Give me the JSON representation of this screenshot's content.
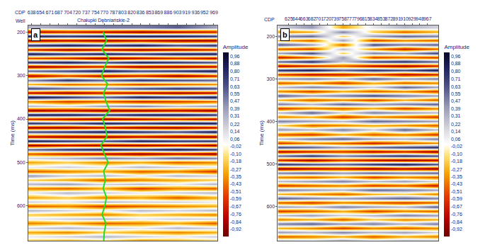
{
  "chart_data": [
    {
      "type": "heatmap",
      "panel": "a",
      "x_label": "CDP",
      "well_label": "Well",
      "well_name": "Chałupki Dębniańskie-2",
      "y_label": "Time (ms)",
      "colorbar_title": "Amplitude",
      "grid": false,
      "xlim": [
        632,
        975
      ],
      "xticks": [
        638,
        654,
        671,
        687,
        704,
        720,
        737,
        754,
        770,
        787,
        803,
        820,
        836,
        853,
        869,
        886,
        903,
        919,
        936,
        952,
        969
      ],
      "ylim": [
        680,
        185
      ],
      "yticks": [
        200,
        300,
        400,
        500,
        600
      ],
      "colorbar_range": [
        -1,
        1
      ],
      "colorbar_ticks": [
        {
          "value": 0.96,
          "label": "0,96"
        },
        {
          "value": 0.88,
          "label": "0,88"
        },
        {
          "value": 0.8,
          "label": "0,80"
        },
        {
          "value": 0.71,
          "label": "0,71"
        },
        {
          "value": 0.63,
          "label": "0,63"
        },
        {
          "value": 0.55,
          "label": "0,55"
        },
        {
          "value": 0.47,
          "label": "0,47"
        },
        {
          "value": 0.39,
          "label": "0,39"
        },
        {
          "value": 0.31,
          "label": "0,31"
        },
        {
          "value": 0.22,
          "label": "0,22"
        },
        {
          "value": 0.14,
          "label": "0,14"
        },
        {
          "value": 0.06,
          "label": "0,06"
        },
        {
          "value": -0.02,
          "label": "-0,02"
        },
        {
          "value": -0.1,
          "label": "-0,10"
        },
        {
          "value": -0.18,
          "label": "-0,18"
        },
        {
          "value": -0.27,
          "label": "-0,27"
        },
        {
          "value": -0.35,
          "label": "-0,35"
        },
        {
          "value": -0.43,
          "label": "-0,43"
        },
        {
          "value": -0.51,
          "label": "-0,51"
        },
        {
          "value": -0.59,
          "label": "-0,59"
        },
        {
          "value": -0.67,
          "label": "-0,67"
        },
        {
          "value": -0.76,
          "label": "-0,76"
        },
        {
          "value": -0.84,
          "label": "-0,84"
        },
        {
          "value": -0.92,
          "label": "-0,92"
        }
      ],
      "x": [
        638,
        704,
        770,
        836,
        903,
        969
      ],
      "y": [
        190,
        200,
        210,
        220,
        230,
        240,
        250,
        260,
        270,
        280,
        290,
        300,
        310,
        320,
        330,
        340,
        350,
        360,
        370,
        380,
        390,
        400,
        410,
        420,
        430,
        440,
        450,
        460,
        470,
        480,
        490,
        500,
        510,
        520,
        530,
        540,
        550,
        560,
        570,
        580,
        590,
        600,
        610,
        620,
        630,
        640,
        650,
        660,
        670,
        680
      ],
      "z": [
        [
          0.3,
          0.4,
          0.5,
          0.5,
          0.6,
          0.4
        ],
        [
          -0.8,
          -0.7,
          -0.8,
          -0.9,
          -0.8,
          -0.7
        ],
        [
          0.9,
          0.8,
          0.9,
          0.9,
          0.9,
          0.8
        ],
        [
          -0.9,
          -0.8,
          -0.9,
          -0.8,
          -0.9,
          -0.9
        ],
        [
          0.8,
          0.9,
          0.8,
          0.9,
          0.7,
          0.8
        ],
        [
          -0.7,
          -0.9,
          -0.8,
          -0.9,
          -0.8,
          -0.7
        ],
        [
          0.9,
          0.8,
          0.9,
          0.8,
          0.9,
          0.9
        ],
        [
          -0.6,
          -0.7,
          -0.9,
          -0.8,
          -0.7,
          -0.8
        ],
        [
          0.8,
          0.9,
          0.7,
          0.9,
          0.8,
          0.7
        ],
        [
          -0.9,
          -0.8,
          -0.7,
          -0.9,
          -0.9,
          -0.8
        ],
        [
          0.6,
          0.7,
          0.9,
          0.7,
          0.8,
          0.9
        ],
        [
          -0.8,
          -0.6,
          -0.8,
          -0.7,
          -0.9,
          -0.7
        ],
        [
          0.5,
          0.8,
          0.6,
          0.8,
          0.7,
          0.6
        ],
        [
          -0.3,
          -0.5,
          -0.4,
          -0.6,
          -0.5,
          -0.4
        ],
        [
          0.7,
          0.6,
          0.5,
          0.7,
          0.8,
          0.7
        ],
        [
          -0.8,
          -0.9,
          -0.7,
          -0.8,
          -0.9,
          -0.8
        ],
        [
          0.9,
          0.8,
          0.6,
          0.9,
          0.8,
          0.9
        ],
        [
          -0.4,
          -0.6,
          -0.5,
          -0.7,
          -0.6,
          -0.5
        ],
        [
          0.3,
          0.2,
          0.4,
          0.5,
          0.3,
          0.4
        ],
        [
          -0.9,
          -0.8,
          -0.9,
          -0.9,
          -0.8,
          -0.9
        ],
        [
          0.9,
          0.9,
          0.8,
          0.9,
          0.9,
          0.8
        ],
        [
          -0.7,
          -0.8,
          -0.9,
          -0.8,
          -0.7,
          -0.8
        ],
        [
          0.8,
          0.7,
          0.9,
          0.8,
          0.9,
          0.9
        ],
        [
          -0.9,
          -0.9,
          -0.8,
          -0.9,
          -0.9,
          -0.8
        ],
        [
          0.7,
          0.8,
          0.9,
          0.8,
          0.7,
          0.9
        ],
        [
          -0.8,
          -0.9,
          -0.9,
          -0.8,
          -0.9,
          -0.9
        ],
        [
          0.9,
          0.8,
          0.7,
          0.9,
          0.8,
          0.8
        ],
        [
          -0.9,
          -0.8,
          -0.9,
          -0.9,
          -0.8,
          -0.9
        ],
        [
          0.6,
          0.8,
          0.9,
          0.8,
          0.9,
          0.8
        ],
        [
          -0.5,
          -0.7,
          -0.8,
          -0.9,
          -0.8,
          -0.9
        ],
        [
          0.2,
          0.3,
          0.5,
          0.4,
          0.6,
          0.5
        ],
        [
          -0.3,
          -0.2,
          -0.4,
          -0.3,
          -0.5,
          -0.4
        ],
        [
          0.1,
          0.2,
          0.1,
          0.3,
          0.2,
          0.1
        ],
        [
          -0.5,
          -0.4,
          -0.3,
          -0.5,
          -0.4,
          -0.6
        ],
        [
          0.4,
          0.2,
          0.3,
          0.1,
          0.3,
          0.2
        ],
        [
          -0.2,
          -0.3,
          -0.5,
          -0.4,
          -0.3,
          -0.2
        ],
        [
          0.3,
          0.4,
          0.2,
          0.3,
          0.1,
          0.3
        ],
        [
          -0.4,
          -0.5,
          -0.3,
          -0.6,
          -0.4,
          -0.5
        ],
        [
          0.1,
          0.3,
          0.2,
          0.1,
          0.2,
          0.3
        ],
        [
          -0.3,
          -0.2,
          -0.4,
          -0.3,
          -0.5,
          -0.3
        ],
        [
          0.2,
          0.1,
          0.3,
          0.2,
          0.2,
          0.1
        ],
        [
          -0.5,
          -0.4,
          -0.6,
          -0.5,
          -0.4,
          -0.3
        ],
        [
          0.3,
          0.2,
          0.1,
          0.3,
          0.2,
          0.3
        ],
        [
          -0.2,
          -0.3,
          -0.4,
          -0.2,
          -0.3,
          -0.4
        ],
        [
          0.1,
          0.2,
          0.3,
          0.1,
          0.2,
          0.2
        ],
        [
          -0.4,
          -0.3,
          -0.5,
          -0.4,
          -0.3,
          -0.5
        ],
        [
          0.2,
          0.3,
          0.2,
          0.1,
          0.3,
          0.2
        ],
        [
          -0.3,
          -0.4,
          -0.2,
          -0.3,
          -0.4,
          -0.3
        ],
        [
          0.1,
          0.2,
          0.3,
          0.2,
          0.1,
          0.2
        ],
        [
          -0.2,
          -0.3,
          -0.2,
          -0.4,
          -0.3,
          -0.2
        ]
      ],
      "well_log": {
        "color": "#22dd22",
        "time": [
          200,
          220,
          240,
          260,
          280,
          300,
          320,
          340,
          360,
          380,
          400,
          420,
          440,
          460,
          480,
          500,
          520,
          540,
          560,
          580,
          600,
          620,
          640,
          660,
          680
        ],
        "cdp": [
          768,
          774,
          766,
          778,
          771,
          765,
          776,
          769,
          773,
          780,
          767,
          772,
          775,
          764,
          770,
          777,
          769,
          772,
          768,
          774,
          771,
          766,
          773,
          770,
          769
        ]
      }
    },
    {
      "type": "heatmap",
      "panel": "b",
      "x_label": "CDP",
      "y_label": "Time (ms)",
      "colorbar_title": "Amplitude",
      "grid": false,
      "xlim": [
        598,
        994
      ],
      "xticks": [
        625,
        644,
        663,
        682,
        701,
        720,
        739,
        758,
        777,
        796,
        815,
        834,
        853,
        872,
        891,
        910,
        929,
        948,
        967
      ],
      "ylim": [
        680,
        175
      ],
      "yticks": [
        200,
        300,
        400,
        500,
        600
      ],
      "colorbar_range": [
        -1,
        1
      ],
      "colorbar_ticks": [
        {
          "value": 0.96,
          "label": "0,96"
        },
        {
          "value": 0.88,
          "label": "0,88"
        },
        {
          "value": 0.8,
          "label": "0,80"
        },
        {
          "value": 0.71,
          "label": "0,71"
        },
        {
          "value": 0.63,
          "label": "0,63"
        },
        {
          "value": 0.55,
          "label": "0,55"
        },
        {
          "value": 0.47,
          "label": "0,47"
        },
        {
          "value": 0.39,
          "label": "0,39"
        },
        {
          "value": 0.31,
          "label": "0,31"
        },
        {
          "value": 0.22,
          "label": "0,22"
        },
        {
          "value": 0.14,
          "label": "0,14"
        },
        {
          "value": 0.06,
          "label": "0,06"
        },
        {
          "value": -0.02,
          "label": "-0,02"
        },
        {
          "value": -0.1,
          "label": "-0,10"
        },
        {
          "value": -0.18,
          "label": "-0,18"
        },
        {
          "value": -0.27,
          "label": "-0,27"
        },
        {
          "value": -0.35,
          "label": "-0,35"
        },
        {
          "value": -0.43,
          "label": "-0,43"
        },
        {
          "value": -0.51,
          "label": "-0,51"
        },
        {
          "value": -0.59,
          "label": "-0,59"
        },
        {
          "value": -0.67,
          "label": "-0,67"
        },
        {
          "value": -0.76,
          "label": "-0,76"
        },
        {
          "value": -0.84,
          "label": "-0,84"
        },
        {
          "value": -0.92,
          "label": "-0,92"
        }
      ],
      "x": [
        606,
        682,
        758,
        834,
        910,
        986
      ],
      "y": [
        180,
        190,
        200,
        210,
        220,
        230,
        240,
        250,
        260,
        270,
        280,
        290,
        300,
        310,
        320,
        330,
        340,
        350,
        360,
        370,
        380,
        390,
        400,
        410,
        420,
        430,
        440,
        450,
        460,
        470,
        480,
        490,
        500,
        510,
        520,
        530,
        540,
        550,
        560,
        570,
        580,
        590,
        600,
        610,
        620,
        630,
        640,
        650,
        660,
        670,
        680
      ],
      "z": [
        [
          0.2,
          0.4,
          -0.3,
          0.1,
          0.3,
          0.2
        ],
        [
          -0.4,
          -0.3,
          0.5,
          -0.2,
          -0.5,
          -0.3
        ],
        [
          0.5,
          0.6,
          -0.2,
          0.4,
          0.6,
          0.5
        ],
        [
          -0.3,
          -0.5,
          0.4,
          -0.6,
          -0.4,
          -0.5
        ],
        [
          0.6,
          0.4,
          -0.5,
          0.7,
          0.5,
          0.6
        ],
        [
          -0.5,
          -0.6,
          0.3,
          -0.4,
          -0.7,
          -0.5
        ],
        [
          0.4,
          0.7,
          -0.2,
          0.5,
          0.4,
          0.7
        ],
        [
          -0.7,
          -0.5,
          0.4,
          -0.6,
          -0.5,
          -0.6
        ],
        [
          0.6,
          0.8,
          0.2,
          0.7,
          0.8,
          0.6
        ],
        [
          -0.8,
          -0.7,
          -0.5,
          -0.8,
          -0.9,
          -0.7
        ],
        [
          0.8,
          0.9,
          0.6,
          0.8,
          0.7,
          0.9
        ],
        [
          -0.6,
          -0.8,
          -0.7,
          -0.6,
          -0.8,
          -0.7
        ],
        [
          0.4,
          0.5,
          0.3,
          0.6,
          0.4,
          0.5
        ],
        [
          -0.5,
          -0.4,
          -0.6,
          -0.3,
          -0.5,
          -0.4
        ],
        [
          0.3,
          0.5,
          0.4,
          0.2,
          0.6,
          0.4
        ],
        [
          -0.4,
          -0.6,
          -0.3,
          -0.5,
          -0.4,
          -0.6
        ],
        [
          0.6,
          0.4,
          0.5,
          0.7,
          0.5,
          0.4
        ],
        [
          -0.3,
          -0.5,
          -0.4,
          -0.6,
          -0.3,
          -0.5
        ],
        [
          0.5,
          0.3,
          0.6,
          0.4,
          0.5,
          0.6
        ],
        [
          -0.6,
          -0.4,
          -0.5,
          -0.3,
          -0.6,
          -0.4
        ],
        [
          0.3,
          0.6,
          0.2,
          0.5,
          0.4,
          0.3
        ],
        [
          -0.4,
          -0.3,
          -0.6,
          -0.4,
          -0.5,
          -0.6
        ],
        [
          0.5,
          0.4,
          0.3,
          0.6,
          0.5,
          0.4
        ],
        [
          -0.2,
          -0.5,
          -0.4,
          -0.3,
          -0.4,
          -0.5
        ],
        [
          0.4,
          0.3,
          0.5,
          0.2,
          0.6,
          0.3
        ],
        [
          -0.5,
          -0.6,
          -0.3,
          -0.5,
          -0.4,
          -0.6
        ],
        [
          0.3,
          0.5,
          0.6,
          0.4,
          0.3,
          0.5
        ],
        [
          -0.6,
          -0.4,
          -0.5,
          -0.7,
          -0.5,
          -0.4
        ],
        [
          0.7,
          0.6,
          0.4,
          0.6,
          0.7,
          0.8
        ],
        [
          -0.8,
          -0.7,
          -0.6,
          -0.8,
          -0.7,
          -0.9
        ],
        [
          0.6,
          0.8,
          0.5,
          0.7,
          0.8,
          0.7
        ],
        [
          -0.7,
          -0.9,
          -0.6,
          -0.8,
          -0.9,
          -0.8
        ],
        [
          0.8,
          0.7,
          0.6,
          0.8,
          0.9,
          0.7
        ],
        [
          -0.9,
          -0.8,
          -0.7,
          -0.9,
          -0.8,
          -0.9
        ],
        [
          0.5,
          0.6,
          0.4,
          0.6,
          0.5,
          0.6
        ],
        [
          -0.4,
          -0.5,
          -0.3,
          -0.6,
          -0.4,
          -0.5
        ],
        [
          0.3,
          0.4,
          0.5,
          0.3,
          0.4,
          0.2
        ],
        [
          -0.6,
          -0.5,
          -0.4,
          -0.6,
          -0.5,
          -0.7
        ],
        [
          0.5,
          0.4,
          0.3,
          0.6,
          0.5,
          0.4
        ],
        [
          -0.3,
          -0.4,
          -0.5,
          -0.3,
          -0.2,
          -0.4
        ],
        [
          0.6,
          0.5,
          0.4,
          0.5,
          0.6,
          0.5
        ],
        [
          -0.5,
          -0.6,
          -0.4,
          -0.5,
          -0.6,
          -0.5
        ],
        [
          0.4,
          0.3,
          0.5,
          0.4,
          0.3,
          0.6
        ],
        [
          -0.6,
          -0.5,
          -0.3,
          -0.6,
          -0.4,
          -0.5
        ],
        [
          0.3,
          0.4,
          0.2,
          0.3,
          0.5,
          0.4
        ],
        [
          -0.4,
          -0.3,
          -0.5,
          -0.2,
          -0.4,
          -0.3
        ],
        [
          0.5,
          0.6,
          0.4,
          0.5,
          0.3,
          0.5
        ],
        [
          -0.3,
          -0.4,
          -0.6,
          -0.4,
          -0.5,
          -0.4
        ],
        [
          0.4,
          0.3,
          0.5,
          0.3,
          0.4,
          0.2
        ],
        [
          -0.5,
          -0.4,
          -0.3,
          -0.5,
          -0.3,
          -0.4
        ],
        [
          0.3,
          0.2,
          0.4,
          0.2,
          0.3,
          0.3
        ]
      ]
    }
  ]
}
